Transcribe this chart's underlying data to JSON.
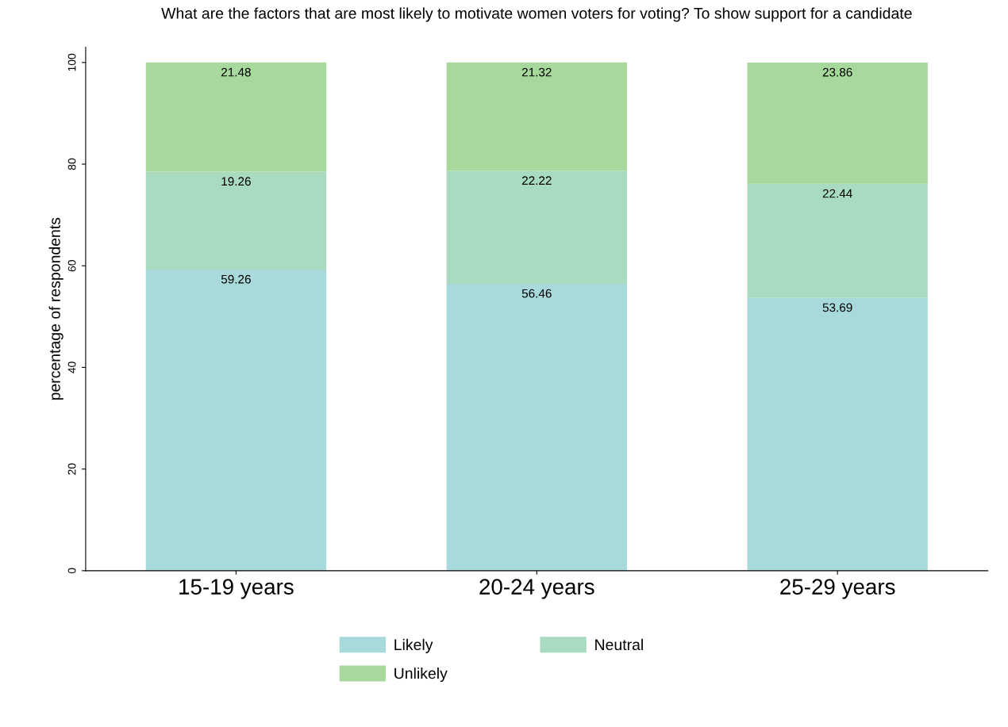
{
  "chart_data": {
    "type": "bar",
    "stacked": true,
    "title": "What are the factors that are most likely to motivate women voters for voting? To show support for a candidate",
    "ylabel": "percentage of respondents",
    "categories": [
      "15-19 years",
      "20-24 years",
      "25-29 years"
    ],
    "series": [
      {
        "name": "Likely",
        "color": "#a8dadb",
        "values": [
          59.26,
          56.46,
          53.69
        ]
      },
      {
        "name": "Neutral",
        "color": "#a8dbc0",
        "values": [
          19.26,
          22.22,
          22.44
        ]
      },
      {
        "name": "Unlikely",
        "color": "#a8d99c",
        "values": [
          21.48,
          21.32,
          23.86
        ]
      }
    ],
    "ylim": [
      0,
      103
    ],
    "yticks": [
      0,
      20,
      40,
      60,
      80,
      100
    ],
    "data_labels": true,
    "legend": "bottom",
    "grid": false
  }
}
